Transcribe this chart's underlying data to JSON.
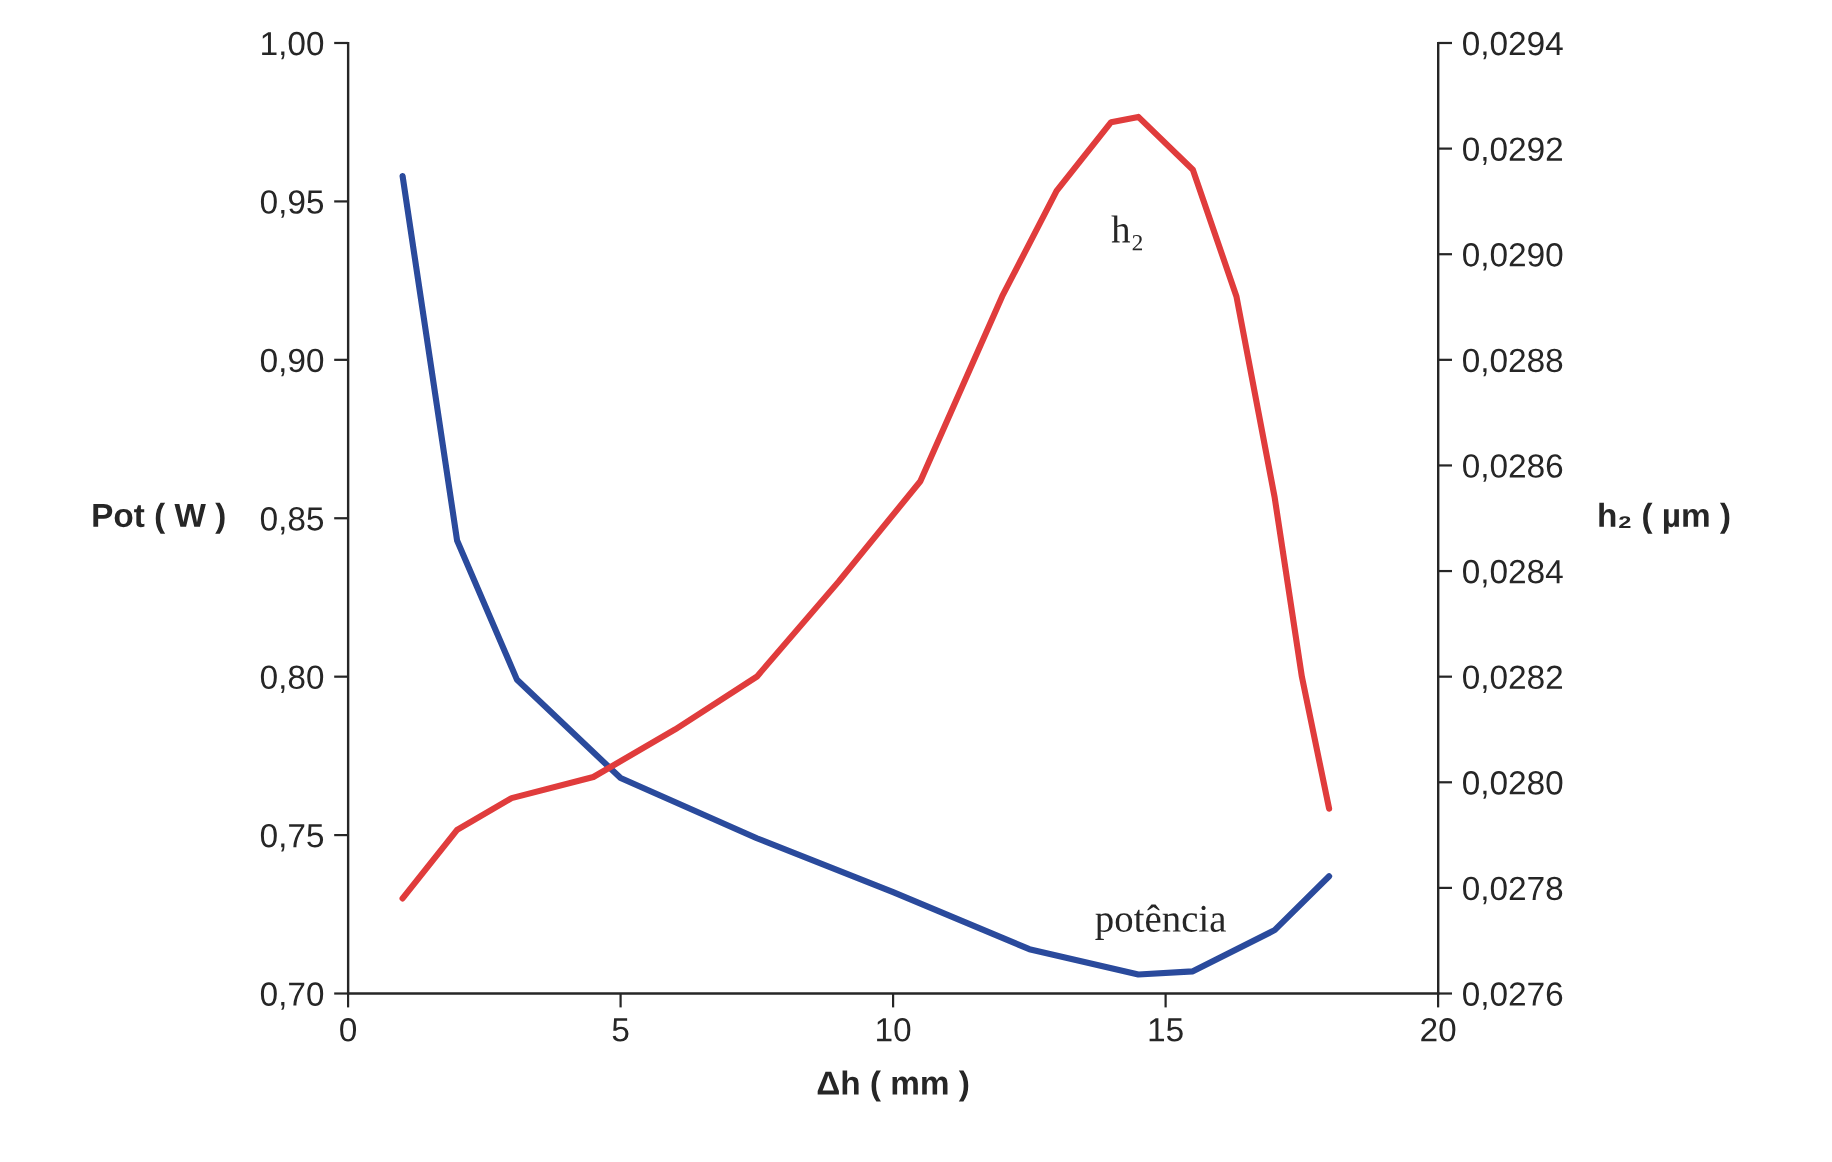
{
  "chart_data": {
    "type": "line",
    "xlabel": "Δh ( mm )",
    "ylabel": "Pot ( W )",
    "y2label": "h₂ ( µm )",
    "xlim": [
      0,
      20
    ],
    "xticks": [
      0,
      5,
      10,
      15,
      20
    ],
    "ylim": [
      0.7,
      1.0
    ],
    "yticks": [
      {
        "value": 0.7,
        "label": "0,70"
      },
      {
        "value": 0.75,
        "label": "0,75"
      },
      {
        "value": 0.8,
        "label": "0,80"
      },
      {
        "value": 0.85,
        "label": "0,85"
      },
      {
        "value": 0.9,
        "label": "0,90"
      },
      {
        "value": 0.95,
        "label": "0,95"
      },
      {
        "value": 1.0,
        "label": "1,00"
      }
    ],
    "y2lim": [
      0.0276,
      0.0294
    ],
    "y2ticks": [
      {
        "value": 0.0276,
        "label": "0,0276"
      },
      {
        "value": 0.0278,
        "label": "0,0278"
      },
      {
        "value": 0.028,
        "label": "0,0280"
      },
      {
        "value": 0.0282,
        "label": "0,0282"
      },
      {
        "value": 0.0284,
        "label": "0,0284"
      },
      {
        "value": 0.0286,
        "label": "0,0286"
      },
      {
        "value": 0.0288,
        "label": "0,0288"
      },
      {
        "value": 0.029,
        "label": "0,0290"
      },
      {
        "value": 0.0292,
        "label": "0,0292"
      },
      {
        "value": 0.0294,
        "label": "0,0294"
      }
    ],
    "grid": false,
    "legend": false,
    "marker": "none",
    "line_style": "solid",
    "series": [
      {
        "name": "potência",
        "color": "#2a4a9c",
        "x": [
          1,
          2,
          3.1,
          5,
          7.5,
          10,
          12.5,
          14.5,
          15.5,
          17,
          18
        ],
        "values": [
          0.958,
          0.843,
          0.799,
          0.768,
          0.749,
          0.732,
          0.714,
          0.706,
          0.707,
          0.72,
          0.737
        ]
      },
      {
        "name": "h₂",
        "color": "#e03c3c",
        "axis": "y2",
        "x": [
          1,
          2,
          3,
          4.5,
          6,
          7.5,
          9,
          10.5,
          12,
          13,
          14,
          14.5,
          15.5,
          16.3,
          17,
          17.5,
          18
        ],
        "values": [
          0.02778,
          0.02791,
          0.02797,
          0.02801,
          0.0281,
          0.0282,
          0.02838,
          0.02857,
          0.02892,
          0.02912,
          0.02925,
          0.02926,
          0.02916,
          0.02892,
          0.02854,
          0.0282,
          0.02795
        ]
      }
    ]
  }
}
